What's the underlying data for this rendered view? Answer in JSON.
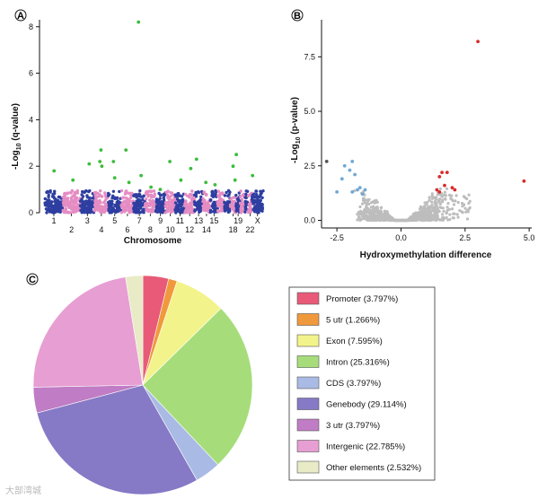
{
  "panels": {
    "a": "A",
    "b": "B",
    "c": "C"
  },
  "watermark": "大部湾城",
  "chart_data": [
    {
      "type": "scatter",
      "subtype": "manhattan",
      "ylabel_main": "-Log",
      "ylabel_sub": "10",
      "ylabel_tail": " (q-value)",
      "xlabel": "Chromosome",
      "ylim": [
        0,
        8.3
      ],
      "yticks": [
        0,
        2,
        4,
        6,
        8
      ],
      "grid": false,
      "chromosome_labels_row1": [
        "1",
        "3",
        "5",
        "7",
        "9",
        "11",
        "13",
        "15",
        "19",
        "X"
      ],
      "chromosome_labels_row2": [
        "2",
        "4",
        "6",
        "8",
        "10",
        "12",
        "14",
        "18",
        "22"
      ],
      "colors": {
        "odd": "#2e3ea0",
        "even": "#e58cc3",
        "significant": "#3cbd3c"
      },
      "significant_points": [
        {
          "chromosome": "1",
          "y": 1.8
        },
        {
          "chromosome": "2",
          "y": 1.4
        },
        {
          "chromosome": "3",
          "y": 2.1
        },
        {
          "chromosome": "4",
          "y": 2.7
        },
        {
          "chromosome": "4",
          "y": 2.2
        },
        {
          "chromosome": "4",
          "y": 2.0
        },
        {
          "chromosome": "5",
          "y": 2.2
        },
        {
          "chromosome": "5",
          "y": 1.5
        },
        {
          "chromosome": "6",
          "y": 1.3
        },
        {
          "chromosome": "6",
          "y": 2.7
        },
        {
          "chromosome": "7",
          "y": 8.2
        },
        {
          "chromosome": "7",
          "y": 1.6
        },
        {
          "chromosome": "8",
          "y": 1.1
        },
        {
          "chromosome": "9",
          "y": 1.0
        },
        {
          "chromosome": "10",
          "y": 2.2
        },
        {
          "chromosome": "11",
          "y": 1.4
        },
        {
          "chromosome": "12",
          "y": 1.9
        },
        {
          "chromosome": "13",
          "y": 2.3
        },
        {
          "chromosome": "14",
          "y": 1.3
        },
        {
          "chromosome": "15",
          "y": 1.2
        },
        {
          "chromosome": "18",
          "y": 2.0
        },
        {
          "chromosome": "18",
          "y": 1.4
        },
        {
          "chromosome": "19",
          "y": 2.5
        },
        {
          "chromosome": "22",
          "y": 1.6
        }
      ]
    },
    {
      "type": "scatter",
      "subtype": "volcano",
      "xlabel": "Hydroxymethylation difference",
      "ylabel_main": "-Log",
      "ylabel_sub": "10",
      "ylabel_tail": " (p-value)",
      "xlim": [
        -3.1,
        5.1
      ],
      "ylim": [
        -0.35,
        9.2
      ],
      "xticks": [
        "-2.5",
        "0.0",
        "2.5",
        "5.0"
      ],
      "yticks": [
        "0.0",
        "2.5",
        "5.0",
        "7.5"
      ],
      "grid": false,
      "colors": {
        "background": "#bdbdbd",
        "down": "#6fa8d6",
        "up": "#d62c2c",
        "dark": "#555555"
      },
      "highlighted_points": [
        {
          "x": 3.0,
          "y": 8.2,
          "group": "up"
        },
        {
          "x": 4.8,
          "y": 1.8,
          "group": "up"
        },
        {
          "x": 1.6,
          "y": 2.2,
          "group": "up"
        },
        {
          "x": 1.8,
          "y": 2.2,
          "group": "up"
        },
        {
          "x": 1.5,
          "y": 2.0,
          "group": "up"
        },
        {
          "x": 1.7,
          "y": 1.6,
          "group": "up"
        },
        {
          "x": 1.4,
          "y": 1.4,
          "group": "up"
        },
        {
          "x": 2.0,
          "y": 1.5,
          "group": "up"
        },
        {
          "x": 2.1,
          "y": 1.4,
          "group": "up"
        },
        {
          "x": 1.5,
          "y": 1.3,
          "group": "up"
        },
        {
          "x": -2.9,
          "y": 2.7,
          "group": "dark"
        },
        {
          "x": -1.9,
          "y": 2.7,
          "group": "down"
        },
        {
          "x": -2.2,
          "y": 2.5,
          "group": "down"
        },
        {
          "x": -2.0,
          "y": 2.3,
          "group": "down"
        },
        {
          "x": -1.8,
          "y": 2.1,
          "group": "down"
        },
        {
          "x": -2.3,
          "y": 1.9,
          "group": "down"
        },
        {
          "x": -1.6,
          "y": 1.5,
          "group": "down"
        },
        {
          "x": -1.4,
          "y": 1.4,
          "group": "down"
        },
        {
          "x": -2.5,
          "y": 1.3,
          "group": "down"
        },
        {
          "x": -1.9,
          "y": 1.3,
          "group": "down"
        },
        {
          "x": -1.7,
          "y": 1.4,
          "group": "down"
        },
        {
          "x": -1.5,
          "y": 1.2,
          "group": "down"
        }
      ]
    },
    {
      "type": "pie",
      "slices": [
        {
          "label": "Promoter (3.797%)",
          "value": 3.797,
          "color": "#e85a78"
        },
        {
          "label": "5 utr (1.266%)",
          "value": 1.266,
          "color": "#f0993c"
        },
        {
          "label": "Exon (7.595%)",
          "value": 7.595,
          "color": "#f3f38b"
        },
        {
          "label": "Intron (25.316%)",
          "value": 25.316,
          "color": "#a6dd7a"
        },
        {
          "label": "CDS (3.797%)",
          "value": 3.797,
          "color": "#a9bbe4"
        },
        {
          "label": "Genebody (29.114%)",
          "value": 29.114,
          "color": "#8679c6"
        },
        {
          "label": "3 utr (3.797%)",
          "value": 3.797,
          "color": "#c07cc4"
        },
        {
          "label": "Intergenic (22.785%)",
          "value": 22.785,
          "color": "#e79ed2"
        },
        {
          "label": "Other elements (2.532%)",
          "value": 2.532,
          "color": "#e8ebc6"
        }
      ],
      "legend_position": "right"
    }
  ]
}
